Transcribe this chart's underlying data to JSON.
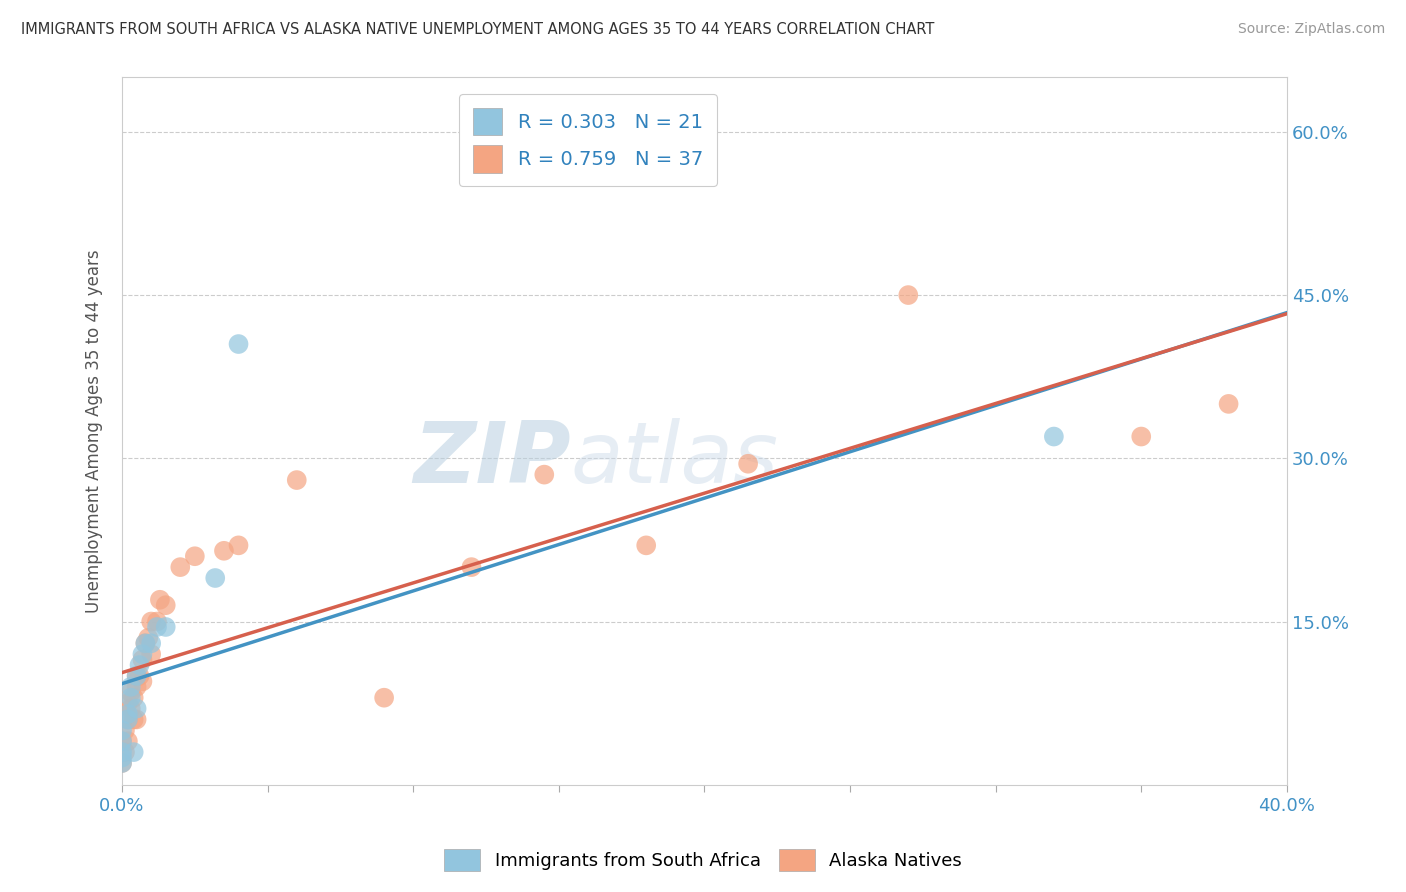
{
  "title": "IMMIGRANTS FROM SOUTH AFRICA VS ALASKA NATIVE UNEMPLOYMENT AMONG AGES 35 TO 44 YEARS CORRELATION CHART",
  "source": "Source: ZipAtlas.com",
  "ylabel": "Unemployment Among Ages 35 to 44 years",
  "xlim": [
    0.0,
    0.4
  ],
  "ylim": [
    0.0,
    0.65
  ],
  "x_ticks": [
    0.0,
    0.05,
    0.1,
    0.15,
    0.2,
    0.25,
    0.3,
    0.35,
    0.4
  ],
  "y_ticks": [
    0.0,
    0.15,
    0.3,
    0.45,
    0.6
  ],
  "blue_color": "#92c5de",
  "pink_color": "#f4a582",
  "blue_line_color": "#4393c3",
  "pink_line_color": "#d6604d",
  "legend_text_color": "#3182bd",
  "watermark_zip": "ZIP",
  "watermark_atlas": "atlas",
  "blue_R": 0.303,
  "blue_N": 21,
  "pink_R": 0.759,
  "pink_N": 37,
  "blue_scatter_x": [
    0.0,
    0.0,
    0.0,
    0.0,
    0.0,
    0.002,
    0.002,
    0.003,
    0.003,
    0.004,
    0.005,
    0.005,
    0.006,
    0.007,
    0.008,
    0.01,
    0.012,
    0.015,
    0.032,
    0.04,
    0.32
  ],
  "blue_scatter_y": [
    0.02,
    0.025,
    0.03,
    0.04,
    0.05,
    0.06,
    0.065,
    0.08,
    0.09,
    0.03,
    0.07,
    0.1,
    0.11,
    0.12,
    0.13,
    0.13,
    0.145,
    0.145,
    0.19,
    0.405,
    0.32
  ],
  "pink_scatter_x": [
    0.0,
    0.0,
    0.001,
    0.001,
    0.002,
    0.002,
    0.002,
    0.003,
    0.003,
    0.004,
    0.004,
    0.005,
    0.005,
    0.005,
    0.006,
    0.007,
    0.007,
    0.008,
    0.009,
    0.01,
    0.01,
    0.012,
    0.013,
    0.015,
    0.02,
    0.025,
    0.035,
    0.04,
    0.06,
    0.09,
    0.12,
    0.145,
    0.18,
    0.215,
    0.27,
    0.35,
    0.38
  ],
  "pink_scatter_y": [
    0.02,
    0.04,
    0.03,
    0.05,
    0.04,
    0.06,
    0.075,
    0.07,
    0.085,
    0.06,
    0.08,
    0.06,
    0.09,
    0.1,
    0.1,
    0.095,
    0.115,
    0.13,
    0.135,
    0.12,
    0.15,
    0.15,
    0.17,
    0.165,
    0.2,
    0.21,
    0.215,
    0.22,
    0.28,
    0.08,
    0.2,
    0.285,
    0.22,
    0.295,
    0.45,
    0.32,
    0.35
  ],
  "background_color": "#ffffff",
  "grid_color": "#cccccc"
}
